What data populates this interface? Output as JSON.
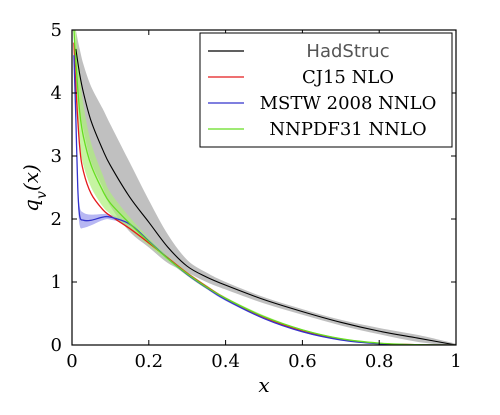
{
  "chart_data": {
    "type": "line",
    "xlabel": "x",
    "ylabel": "q_v(x)",
    "xlim": [
      0,
      1
    ],
    "ylim": [
      0,
      5
    ],
    "xticks": [
      "0",
      "0.2",
      "0.4",
      "0.6",
      "0.8",
      "1"
    ],
    "yticks": [
      "0",
      "1",
      "2",
      "3",
      "4",
      "5"
    ],
    "legend_position": "top-right",
    "series": [
      {
        "name": "HadStruc",
        "color": "#000000",
        "band_color": "#bdbdbd",
        "x": [
          0.01,
          0.02,
          0.03,
          0.05,
          0.08,
          0.1,
          0.15,
          0.2,
          0.25,
          0.3,
          0.35,
          0.4,
          0.5,
          0.6,
          0.7,
          0.8,
          0.9,
          1.0
        ],
        "y": [
          4.7,
          4.3,
          4.0,
          3.55,
          3.1,
          2.85,
          2.35,
          1.95,
          1.55,
          1.25,
          1.08,
          0.95,
          0.72,
          0.53,
          0.36,
          0.22,
          0.11,
          0.0
        ],
        "upper": [
          5.0,
          4.7,
          4.45,
          4.1,
          3.75,
          3.5,
          2.9,
          2.3,
          1.75,
          1.35,
          1.15,
          1.0,
          0.76,
          0.57,
          0.4,
          0.27,
          0.16,
          0.02
        ],
        "lower": [
          4.2,
          3.75,
          3.4,
          2.9,
          2.5,
          2.2,
          1.8,
          1.55,
          1.3,
          1.15,
          1.0,
          0.88,
          0.66,
          0.48,
          0.31,
          0.17,
          0.05,
          -0.02
        ]
      },
      {
        "name": "CJ15 NLO",
        "color": "#e41a1c",
        "x": [
          0.005,
          0.01,
          0.02,
          0.03,
          0.05,
          0.08,
          0.1,
          0.15,
          0.2,
          0.25,
          0.3,
          0.35,
          0.4,
          0.5,
          0.6,
          0.7,
          0.8,
          0.9,
          1.0
        ],
        "y": [
          4.8,
          4.1,
          3.15,
          2.75,
          2.4,
          2.15,
          2.05,
          1.85,
          1.62,
          1.38,
          1.14,
          0.93,
          0.74,
          0.44,
          0.22,
          0.09,
          0.025,
          0.005,
          0.0
        ]
      },
      {
        "name": "MSTW 2008 NNLO",
        "color": "#3333cc",
        "band_color": "#9999ee",
        "x": [
          0.005,
          0.01,
          0.015,
          0.02,
          0.03,
          0.05,
          0.08,
          0.1,
          0.15,
          0.2,
          0.25,
          0.3,
          0.35,
          0.4,
          0.5,
          0.6,
          0.7,
          0.8,
          0.9,
          1.0
        ],
        "y": [
          4.6,
          3.6,
          2.5,
          2.05,
          1.98,
          1.98,
          2.03,
          2.03,
          1.92,
          1.65,
          1.37,
          1.12,
          0.91,
          0.72,
          0.42,
          0.21,
          0.08,
          0.02,
          0.003,
          0.0
        ],
        "upper": [
          4.8,
          3.8,
          2.65,
          2.2,
          2.1,
          2.07,
          2.08,
          2.07,
          1.95,
          1.68,
          1.4,
          1.14,
          0.93,
          0.74,
          0.43,
          0.22,
          0.085,
          0.025,
          0.005,
          0.0
        ],
        "lower": [
          4.4,
          3.4,
          2.35,
          1.9,
          1.86,
          1.9,
          1.98,
          1.99,
          1.89,
          1.62,
          1.34,
          1.1,
          0.89,
          0.7,
          0.41,
          0.2,
          0.075,
          0.015,
          0.001,
          0.0
        ]
      },
      {
        "name": "NNPDF31 NNLO",
        "color": "#66dd22",
        "band_color": "#aef07a",
        "x": [
          0.005,
          0.01,
          0.02,
          0.03,
          0.05,
          0.08,
          0.1,
          0.15,
          0.2,
          0.25,
          0.3,
          0.35,
          0.4,
          0.5,
          0.6,
          0.7,
          0.8,
          0.9,
          1.0
        ],
        "y": [
          5.0,
          4.5,
          3.7,
          3.3,
          2.85,
          2.45,
          2.25,
          1.93,
          1.64,
          1.37,
          1.13,
          0.92,
          0.74,
          0.45,
          0.24,
          0.1,
          0.03,
          0.005,
          0.0
        ],
        "upper": [
          5.0,
          5.0,
          4.3,
          3.8,
          3.2,
          2.7,
          2.42,
          2.03,
          1.7,
          1.41,
          1.16,
          0.95,
          0.76,
          0.47,
          0.25,
          0.11,
          0.035,
          0.008,
          0.0
        ],
        "lower": [
          4.8,
          4.0,
          3.2,
          2.85,
          2.5,
          2.2,
          2.08,
          1.83,
          1.58,
          1.33,
          1.1,
          0.89,
          0.72,
          0.43,
          0.23,
          0.09,
          0.025,
          0.003,
          0.0
        ]
      }
    ]
  }
}
